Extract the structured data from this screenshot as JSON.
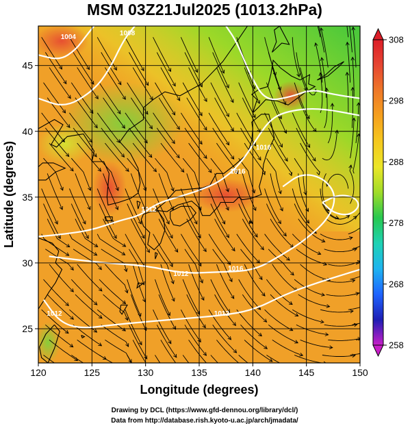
{
  "map": {
    "title": "MSM 03Z21Jul2025 (1013.2hPa)",
    "xlabel": "Longitude (degrees)",
    "ylabel": "Latitude  (degrees)",
    "lon_range": [
      120,
      150
    ],
    "lat_range": [
      22.4,
      48
    ],
    "lon_ticks": [
      "120",
      "125",
      "130",
      "135",
      "140",
      "145",
      "150"
    ],
    "lat_ticks": [
      "25",
      "30",
      "35",
      "40",
      "45"
    ],
    "grid": true,
    "isobars": [
      {
        "label": "1004",
        "lon": 122.8,
        "lat": 47.0
      },
      {
        "label": "1008",
        "lon": 128.3,
        "lat": 47.3
      },
      {
        "label": "1012",
        "lon": 130.3,
        "lat": 33.9
      },
      {
        "label": "1016",
        "lon": 138.6,
        "lat": 36.8
      },
      {
        "label": "1016",
        "lon": 141.0,
        "lat": 38.6
      },
      {
        "label": "1016",
        "lon": 138.4,
        "lat": 29.4
      },
      {
        "label": "1012",
        "lon": 133.3,
        "lat": 29.0
      },
      {
        "label": "1012",
        "lon": 121.5,
        "lat": 26.0
      },
      {
        "label": "1012",
        "lon": 137.1,
        "lat": 26.0
      }
    ]
  },
  "colorbar": {
    "min": 258,
    "max": 308,
    "ticks": [
      "308",
      "298",
      "288",
      "278",
      "268",
      "258"
    ],
    "colors": [
      "#c81ec8",
      "#1e1eb4",
      "#1e64ff",
      "#1eb4f0",
      "#1ed2b4",
      "#28c850",
      "#a0dc28",
      "#ebe628",
      "#f5c81e",
      "#f5a01e",
      "#ee7828",
      "#e64632",
      "#dc1e28"
    ]
  },
  "credits": {
    "line1": "Drawing by DCL (https://www.gfd-dennou.org/library/dcl/)",
    "line2": "Data from http://database.rish.kyoto-u.ac.jp/arch/jmadata/"
  }
}
